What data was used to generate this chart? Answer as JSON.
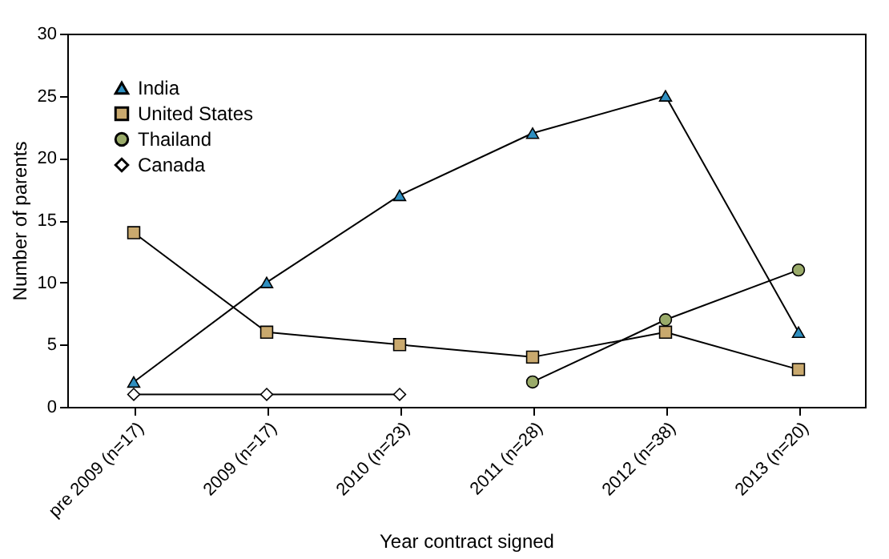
{
  "chart_data": {
    "type": "line",
    "xlabel": "Year contract  signed",
    "ylabel": "Number of parents",
    "categories": [
      "pre 2009 (n=17)",
      "2009 (n=17)",
      "2010 (n=23)",
      "2011 (n=28)",
      "2012 (n=38)",
      "2013 (n=20)"
    ],
    "ylim": [
      0,
      30
    ],
    "yticks": [
      0,
      5,
      10,
      15,
      20,
      25,
      30
    ],
    "grid": false,
    "legend": "top left",
    "series": [
      {
        "name": "India",
        "color": "#2f8fc0",
        "marker": "triangle",
        "values": [
          2,
          10,
          17,
          22,
          25,
          6
        ]
      },
      {
        "name": "United States",
        "color": "#c9a96e",
        "marker": "square",
        "values": [
          14,
          6,
          5,
          4,
          6,
          3
        ]
      },
      {
        "name": "Thailand",
        "color": "#9aab6a",
        "marker": "circle",
        "values": [
          null,
          null,
          null,
          2,
          7,
          11
        ]
      },
      {
        "name": "Canada",
        "color": "#ffffff",
        "marker": "diamond",
        "values": [
          1,
          1,
          1,
          null,
          null,
          null
        ]
      }
    ]
  }
}
